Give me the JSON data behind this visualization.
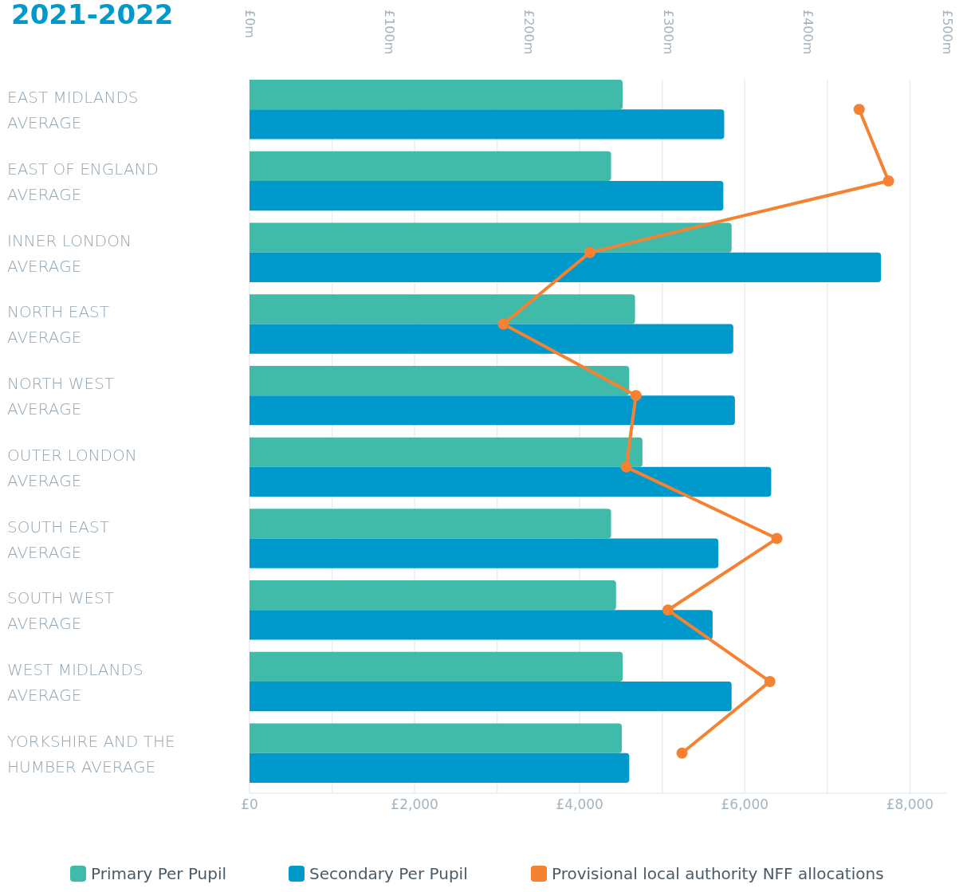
{
  "chart_data": {
    "type": "bar",
    "orientation": "horizontal",
    "title": "2021-2022",
    "categories": [
      "EAST MIDLANDS AVERAGE",
      "EAST OF ENGLAND AVERAGE",
      "INNER LONDON AVERAGE",
      "NORTH EAST AVERAGE",
      "NORTH WEST AVERAGE",
      "OUTER LONDON AVERAGE",
      "SOUTH EAST AVERAGE",
      "SOUTH WEST AVERAGE",
      "WEST MIDLANDS AVERAGE",
      "YORKSHIRE AND THE HUMBER AVERAGE"
    ],
    "series": [
      {
        "name": "Primary Per Pupil",
        "color": "#40bba9",
        "values": [
          4520,
          4380,
          5840,
          4670,
          4600,
          4760,
          4380,
          4440,
          4520,
          4510
        ]
      },
      {
        "name": "Secondary Per Pupil",
        "color": "#0099cc",
        "values": [
          5750,
          5740,
          7650,
          5860,
          5880,
          6320,
          5680,
          5610,
          5840,
          4600
        ]
      },
      {
        "name": "Provisional local authority NFF allocations",
        "type": "line",
        "axis": "x2",
        "color": "#f58232",
        "values": [
          437,
          458,
          244,
          182,
          277,
          270,
          378,
          300,
          373,
          310
        ]
      }
    ],
    "xlim": [
      0,
      8450
    ],
    "xticks": [
      {
        "value": 0,
        "label": "£0"
      },
      {
        "value": 1000,
        "label": null
      },
      {
        "value": 2000,
        "label": "£2,000"
      },
      {
        "value": 3000,
        "label": null
      },
      {
        "value": 4000,
        "label": "£4,000"
      },
      {
        "value": 5000,
        "label": null
      },
      {
        "value": 6000,
        "label": "£6,000"
      },
      {
        "value": 7000,
        "label": null
      },
      {
        "value": 8000,
        "label": "£8,000"
      }
    ],
    "x2lim": [
      0,
      500
    ],
    "x2ticks": [
      {
        "value": 0,
        "label": "£0m"
      },
      {
        "value": 100,
        "label": "£100m"
      },
      {
        "value": 200,
        "label": "£200m"
      },
      {
        "value": 300,
        "label": "£300m"
      },
      {
        "value": 400,
        "label": "£400m"
      },
      {
        "value": 500,
        "label": "£500m"
      }
    ],
    "grid": "x",
    "marker": "circle",
    "legend": "bottom"
  }
}
